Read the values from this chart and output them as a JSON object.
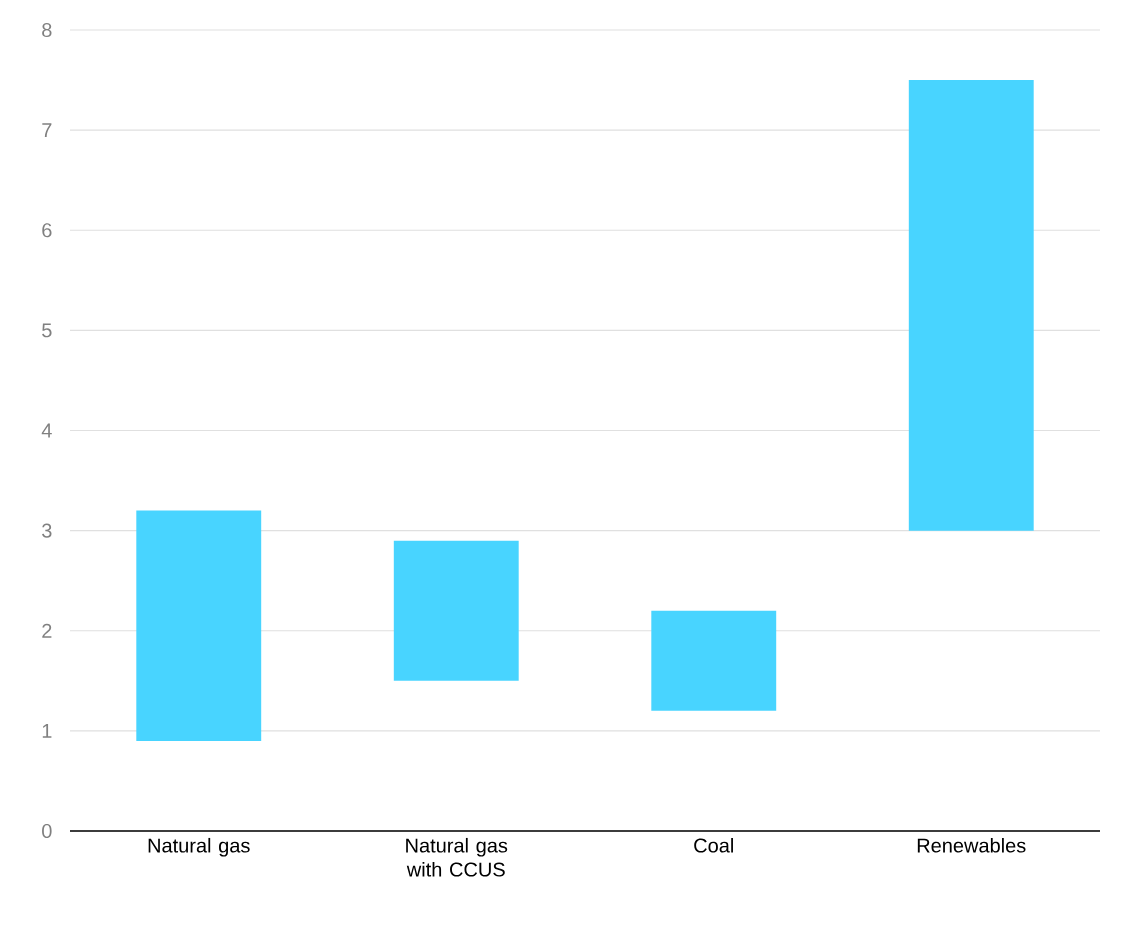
{
  "chart_data": {
    "type": "bar",
    "categories": [
      "Natural gas",
      "Natural gas with CCUS",
      "Coal",
      "Renewables"
    ],
    "base": [
      0.9,
      1.5,
      1.2,
      3.0
    ],
    "values": [
      2.3,
      1.4,
      1.0,
      4.5
    ],
    "color": "#48d4ff",
    "ylim": [
      0,
      8
    ],
    "yticks": [
      0,
      1,
      2,
      3,
      4,
      5,
      6,
      7,
      8
    ],
    "grid": "y"
  }
}
